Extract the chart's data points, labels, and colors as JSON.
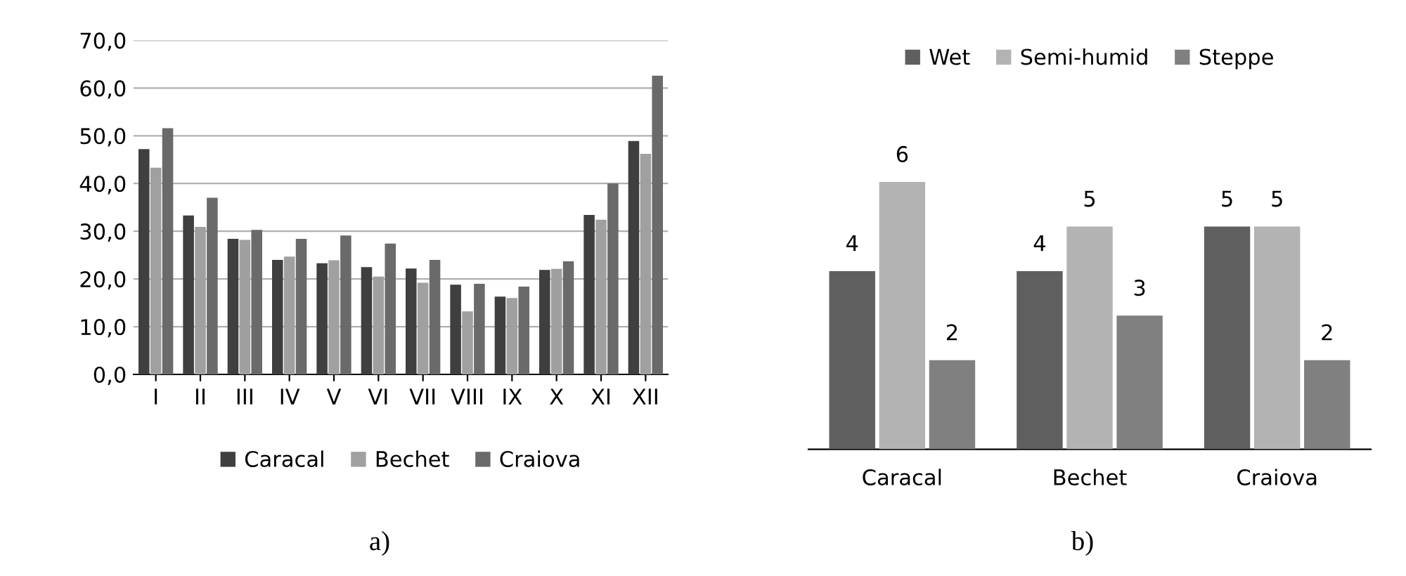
{
  "chart_data": [
    {
      "type": "bar",
      "categories": [
        "I",
        "II",
        "III",
        "IV",
        "V",
        "VI",
        "VII",
        "VIII",
        "IX",
        "X",
        "XI",
        "XII"
      ],
      "series": [
        {
          "name": "Caracal",
          "color": "#3f3f3f",
          "values": [
            47.2,
            33.3,
            28.4,
            24.0,
            23.3,
            22.5,
            22.2,
            18.8,
            16.3,
            21.9,
            33.4,
            48.9
          ]
        },
        {
          "name": "Bechet",
          "color": "#a0a0a0",
          "values": [
            43.3,
            30.9,
            28.2,
            24.7,
            23.9,
            20.5,
            19.2,
            13.2,
            16.0,
            22.1,
            32.4,
            46.2
          ]
        },
        {
          "name": "Craiova",
          "color": "#6a6a6a",
          "values": [
            51.6,
            37.0,
            30.3,
            28.4,
            29.1,
            27.4,
            24.0,
            19.0,
            18.4,
            23.7,
            40.0,
            62.6
          ]
        }
      ],
      "ylim": [
        0,
        70
      ],
      "yticks": [
        {
          "value": 0,
          "label": "0,0"
        },
        {
          "value": 10,
          "label": "10,0"
        },
        {
          "value": 20,
          "label": "20,0"
        },
        {
          "value": 30,
          "label": "30,0"
        },
        {
          "value": 40,
          "label": "40,0"
        },
        {
          "value": 50,
          "label": "50,0"
        },
        {
          "value": 60,
          "label": "60,0"
        },
        {
          "value": 70,
          "label": "70,0"
        }
      ],
      "grid": "y",
      "legend": "bottom",
      "annotations": [
        "a)"
      ]
    },
    {
      "type": "bar",
      "categories": [
        "Caracal",
        "Bechet",
        "Craiova"
      ],
      "series": [
        {
          "name": "Wet",
          "color": "#5f5f5f",
          "values": [
            4,
            4,
            5
          ]
        },
        {
          "name": "Semi-humid",
          "color": "#b3b3b3",
          "values": [
            6,
            5,
            5
          ]
        },
        {
          "name": "Steppe",
          "color": "#808080",
          "values": [
            2,
            3,
            2
          ]
        }
      ],
      "data_labels": true,
      "legend": "top",
      "annotations": [
        "b)"
      ]
    }
  ]
}
